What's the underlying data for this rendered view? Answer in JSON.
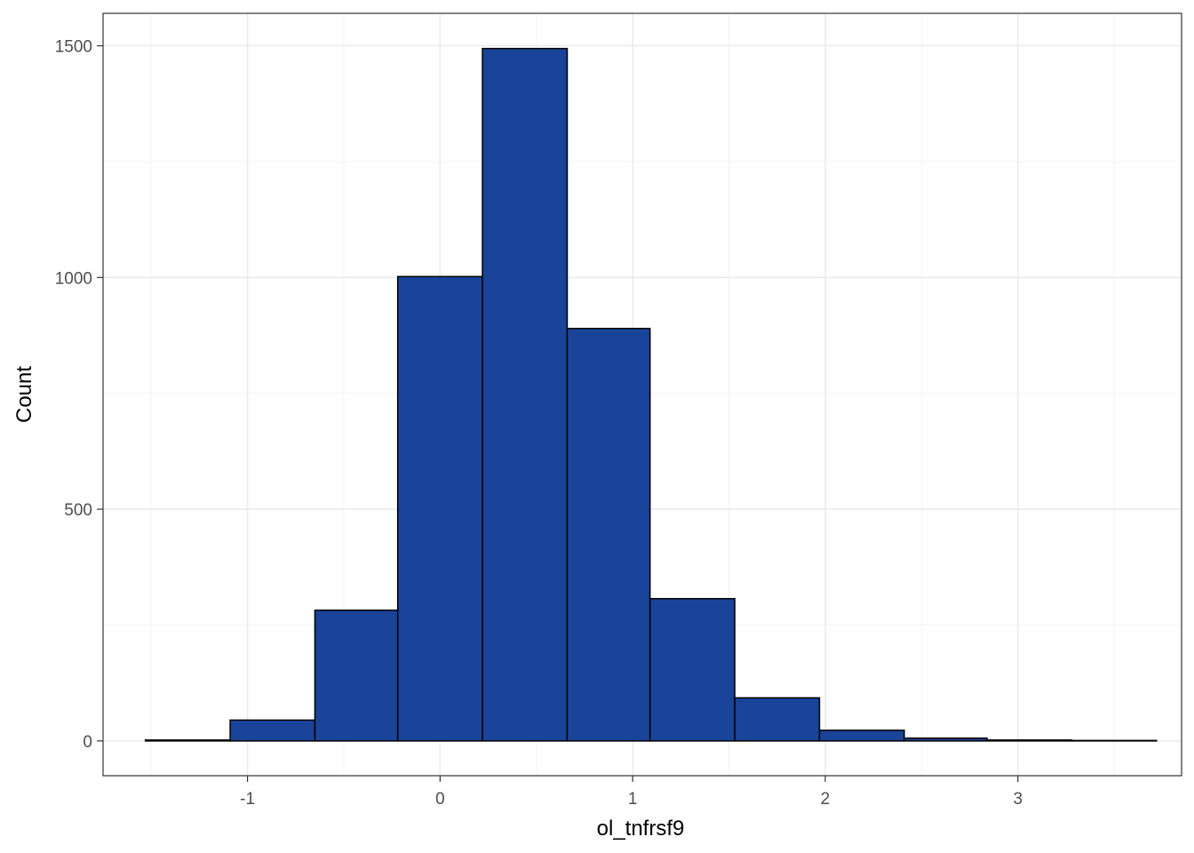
{
  "chart_data": {
    "type": "bar",
    "subtype": "histogram",
    "xlabel": "ol_tnfrsf9",
    "ylabel": "Count",
    "xlim": [
      -1.75,
      3.85
    ],
    "ylim": [
      -75,
      1570
    ],
    "x_ticks": [
      -1,
      0,
      1,
      2,
      3
    ],
    "y_ticks": [
      0,
      500,
      1000,
      1500
    ],
    "grid": true,
    "bar_color": "#1A4499",
    "bar_edge": "#000000",
    "bins": [
      {
        "x0": -1.53,
        "x1": -1.09,
        "count": 2
      },
      {
        "x0": -1.09,
        "x1": -0.65,
        "count": 45
      },
      {
        "x0": -0.65,
        "x1": -0.22,
        "count": 282
      },
      {
        "x0": -0.22,
        "x1": 0.22,
        "count": 1002
      },
      {
        "x0": 0.22,
        "x1": 0.66,
        "count": 1494
      },
      {
        "x0": 0.66,
        "x1": 1.09,
        "count": 890
      },
      {
        "x0": 1.09,
        "x1": 1.53,
        "count": 307
      },
      {
        "x0": 1.53,
        "x1": 1.97,
        "count": 93
      },
      {
        "x0": 1.97,
        "x1": 2.41,
        "count": 23
      },
      {
        "x0": 2.41,
        "x1": 2.84,
        "count": 6
      },
      {
        "x0": 2.84,
        "x1": 3.28,
        "count": 2
      },
      {
        "x0": 3.28,
        "x1": 3.72,
        "count": 1
      }
    ]
  }
}
